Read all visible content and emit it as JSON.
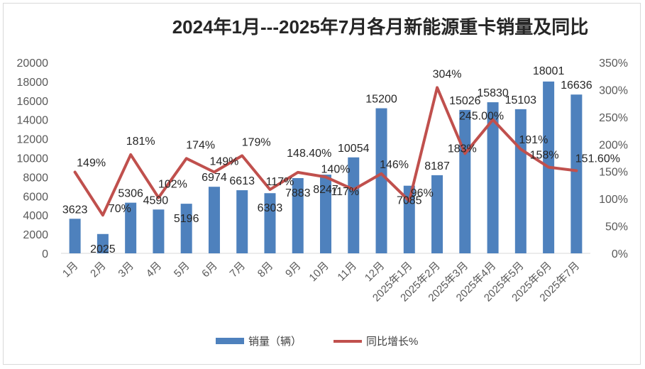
{
  "chart_data": {
    "type": "bar+line",
    "title": "2024年1月---2025年7月各月新能源重卡销量及同比",
    "categories": [
      "1月",
      "2月",
      "3月",
      "4月",
      "5月",
      "6月",
      "7月",
      "8月",
      "9月",
      "10月",
      "11月",
      "12月",
      "2025年1月",
      "2025年2月",
      "2025年3月",
      "2025年4月",
      "2025年5月",
      "2025年6月",
      "2025年7月"
    ],
    "series": [
      {
        "name": "销量（辆）",
        "type": "bar",
        "axis": "left",
        "color": "#4e81bd",
        "values": [
          3623,
          2025,
          5306,
          4590,
          5196,
          6974,
          6613,
          6303,
          7883,
          8247,
          10054,
          15200,
          7085,
          8187,
          15026,
          15830,
          15103,
          18001,
          16636
        ],
        "labels": [
          "3623",
          "2025",
          "5306",
          "4590",
          "5196",
          "6974",
          "6613",
          "6303",
          "7883",
          "8247",
          "10054",
          "15200",
          "7085",
          "8187",
          "15026",
          "15830",
          "15103",
          "18001",
          "16636"
        ]
      },
      {
        "name": "同比增长%",
        "type": "line",
        "axis": "right",
        "color": "#c0504d",
        "values": [
          149,
          70,
          181,
          102,
          174,
          149,
          179,
          117,
          148.4,
          140,
          117,
          146,
          96,
          304,
          183,
          245,
          191,
          158,
          151.6
        ],
        "labels": [
          "149%",
          "70%",
          "181%",
          "102%",
          "174%",
          "149%",
          "179%",
          "117%",
          "148.40%",
          "140%",
          "117%",
          "146%",
          "96%",
          "304%",
          "183%",
          "245.00%",
          "191%",
          "158%",
          "151.60%"
        ]
      }
    ],
    "y_left": {
      "min": 0,
      "max": 20000,
      "step": 2000,
      "ticks": [
        "0",
        "2000",
        "4000",
        "6000",
        "8000",
        "10000",
        "12000",
        "14000",
        "16000",
        "18000",
        "20000"
      ]
    },
    "y_right": {
      "min": 0,
      "max": 350,
      "step": 50,
      "ticks": [
        "0%",
        "50%",
        "100%",
        "150%",
        "200%",
        "250%",
        "300%",
        "350%"
      ]
    },
    "grid": false,
    "legend_position": "bottom"
  }
}
